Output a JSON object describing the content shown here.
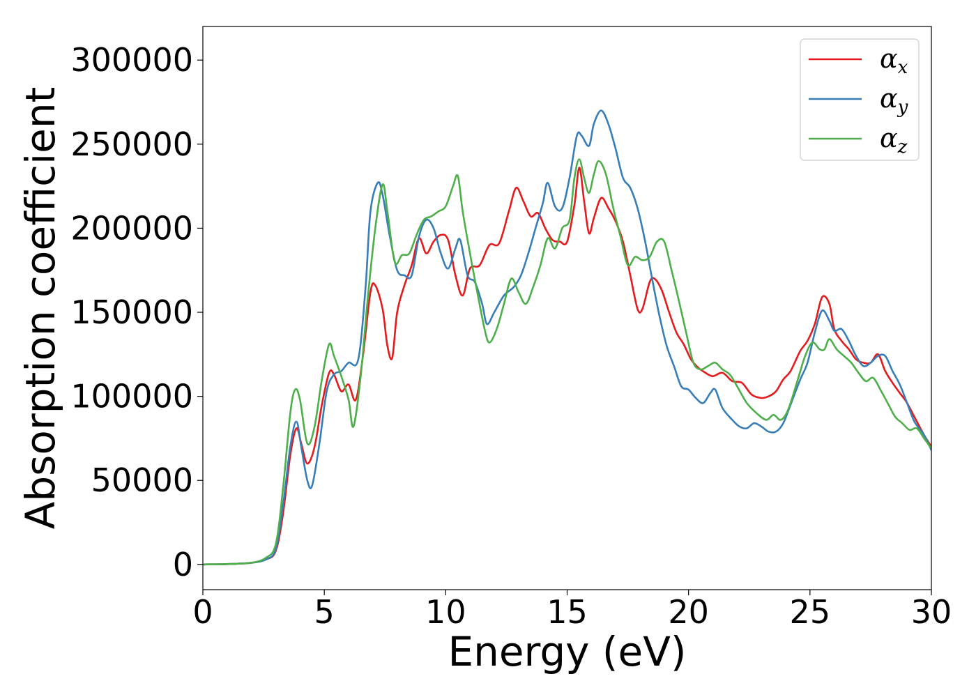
{
  "chart_data": {
    "type": "line",
    "title": "",
    "xlabel": "Energy (eV)",
    "ylabel": "Absorption coefficient",
    "xlim": [
      0,
      30
    ],
    "ylim": [
      -15000,
      320000
    ],
    "grid": false,
    "legend_placement": "top-right",
    "x_ticks": [
      "0",
      "5",
      "10",
      "15",
      "20",
      "25",
      "30"
    ],
    "y_ticks": [
      "0",
      "50000",
      "100000",
      "150000",
      "200000",
      "250000",
      "300000"
    ],
    "series": [
      {
        "name": "αx",
        "legend": {
          "base": "α",
          "sub": "x"
        },
        "color": "#e41a1c",
        "points": [
          [
            0,
            0
          ],
          [
            1,
            200
          ],
          [
            2,
            1000
          ],
          [
            2.6,
            3000
          ],
          [
            3.0,
            8000
          ],
          [
            3.3,
            30000
          ],
          [
            3.6,
            65000
          ],
          [
            3.85,
            81000
          ],
          [
            4.05,
            72000
          ],
          [
            4.3,
            60000
          ],
          [
            4.6,
            70000
          ],
          [
            4.9,
            95000
          ],
          [
            5.2,
            114000
          ],
          [
            5.4,
            113000
          ],
          [
            5.7,
            103000
          ],
          [
            6.0,
            107000
          ],
          [
            6.3,
            98000
          ],
          [
            6.6,
            125000
          ],
          [
            6.9,
            162000
          ],
          [
            7.1,
            166000
          ],
          [
            7.4,
            152000
          ],
          [
            7.6,
            130000
          ],
          [
            7.8,
            123000
          ],
          [
            8.0,
            150000
          ],
          [
            8.3,
            166000
          ],
          [
            8.6,
            178000
          ],
          [
            8.9,
            194000
          ],
          [
            9.2,
            185000
          ],
          [
            9.5,
            192000
          ],
          [
            9.8,
            196000
          ],
          [
            10.1,
            193000
          ],
          [
            10.4,
            172000
          ],
          [
            10.7,
            160000
          ],
          [
            11.0,
            176000
          ],
          [
            11.4,
            178000
          ],
          [
            11.8,
            190000
          ],
          [
            12.2,
            191000
          ],
          [
            12.6,
            210000
          ],
          [
            12.9,
            224000
          ],
          [
            13.2,
            216000
          ],
          [
            13.5,
            207000
          ],
          [
            13.8,
            209000
          ],
          [
            14.1,
            200000
          ],
          [
            14.4,
            193000
          ],
          [
            14.7,
            192000
          ],
          [
            15.0,
            192000
          ],
          [
            15.3,
            214000
          ],
          [
            15.5,
            236000
          ],
          [
            15.7,
            216000
          ],
          [
            15.9,
            197000
          ],
          [
            16.1,
            206000
          ],
          [
            16.4,
            218000
          ],
          [
            16.7,
            212000
          ],
          [
            17.0,
            204000
          ],
          [
            17.3,
            192000
          ],
          [
            17.6,
            172000
          ],
          [
            17.9,
            152000
          ],
          [
            18.1,
            152000
          ],
          [
            18.4,
            168000
          ],
          [
            18.6,
            170000
          ],
          [
            18.9,
            163000
          ],
          [
            19.2,
            150000
          ],
          [
            19.5,
            138000
          ],
          [
            19.8,
            131000
          ],
          [
            20.1,
            122000
          ],
          [
            20.4,
            117000
          ],
          [
            20.7,
            114000
          ],
          [
            21.0,
            112000
          ],
          [
            21.4,
            114000
          ],
          [
            21.8,
            109000
          ],
          [
            22.2,
            108000
          ],
          [
            22.6,
            101000
          ],
          [
            23.0,
            99000
          ],
          [
            23.3,
            100000
          ],
          [
            23.6,
            103000
          ],
          [
            23.9,
            110000
          ],
          [
            24.2,
            115000
          ],
          [
            24.6,
            127000
          ],
          [
            24.9,
            133000
          ],
          [
            25.2,
            143000
          ],
          [
            25.5,
            159000
          ],
          [
            25.8,
            155000
          ],
          [
            26.0,
            140000
          ],
          [
            26.3,
            133000
          ],
          [
            26.6,
            128000
          ],
          [
            26.9,
            122000
          ],
          [
            27.2,
            120000
          ],
          [
            27.5,
            120000
          ],
          [
            27.8,
            125000
          ],
          [
            28.1,
            115000
          ],
          [
            28.4,
            108000
          ],
          [
            28.7,
            102000
          ],
          [
            29.0,
            96000
          ],
          [
            29.4,
            85000
          ],
          [
            29.7,
            77000
          ],
          [
            30.0,
            70000
          ]
        ]
      },
      {
        "name": "αy",
        "legend": {
          "base": "α",
          "sub": "y"
        },
        "color": "#377eb8",
        "points": [
          [
            0,
            0
          ],
          [
            1,
            200
          ],
          [
            2,
            1000
          ],
          [
            2.6,
            3000
          ],
          [
            3.0,
            9000
          ],
          [
            3.3,
            35000
          ],
          [
            3.6,
            70000
          ],
          [
            3.85,
            85000
          ],
          [
            4.05,
            70000
          ],
          [
            4.3,
            50000
          ],
          [
            4.5,
            47000
          ],
          [
            4.8,
            72000
          ],
          [
            5.1,
            103000
          ],
          [
            5.4,
            113000
          ],
          [
            5.7,
            115000
          ],
          [
            6.0,
            120000
          ],
          [
            6.4,
            122000
          ],
          [
            6.7,
            165000
          ],
          [
            6.9,
            210000
          ],
          [
            7.2,
            227000
          ],
          [
            7.4,
            220000
          ],
          [
            7.7,
            195000
          ],
          [
            8.0,
            175000
          ],
          [
            8.3,
            172000
          ],
          [
            8.6,
            172000
          ],
          [
            8.9,
            195000
          ],
          [
            9.2,
            205000
          ],
          [
            9.5,
            200000
          ],
          [
            9.8,
            185000
          ],
          [
            10.1,
            176000
          ],
          [
            10.4,
            188000
          ],
          [
            10.6,
            193000
          ],
          [
            10.9,
            172000
          ],
          [
            11.2,
            168000
          ],
          [
            11.5,
            155000
          ],
          [
            11.7,
            143000
          ],
          [
            12.0,
            150000
          ],
          [
            12.4,
            160000
          ],
          [
            12.8,
            165000
          ],
          [
            13.1,
            172000
          ],
          [
            13.4,
            185000
          ],
          [
            13.7,
            200000
          ],
          [
            14.0,
            215000
          ],
          [
            14.2,
            227000
          ],
          [
            14.5,
            213000
          ],
          [
            14.8,
            212000
          ],
          [
            15.1,
            230000
          ],
          [
            15.4,
            255000
          ],
          [
            15.6,
            255000
          ],
          [
            15.9,
            249000
          ],
          [
            16.1,
            262000
          ],
          [
            16.4,
            270000
          ],
          [
            16.7,
            262000
          ],
          [
            17.0,
            247000
          ],
          [
            17.3,
            230000
          ],
          [
            17.6,
            224000
          ],
          [
            17.9,
            212000
          ],
          [
            18.2,
            193000
          ],
          [
            18.5,
            170000
          ],
          [
            18.8,
            148000
          ],
          [
            19.1,
            130000
          ],
          [
            19.4,
            118000
          ],
          [
            19.7,
            106000
          ],
          [
            20.0,
            104000
          ],
          [
            20.3,
            99000
          ],
          [
            20.6,
            96000
          ],
          [
            20.9,
            102000
          ],
          [
            21.1,
            104000
          ],
          [
            21.4,
            93000
          ],
          [
            21.8,
            86000
          ],
          [
            22.1,
            82000
          ],
          [
            22.4,
            81000
          ],
          [
            22.7,
            84000
          ],
          [
            23.0,
            82000
          ],
          [
            23.3,
            79000
          ],
          [
            23.6,
            79000
          ],
          [
            23.9,
            84000
          ],
          [
            24.2,
            95000
          ],
          [
            24.6,
            110000
          ],
          [
            24.9,
            120000
          ],
          [
            25.2,
            138000
          ],
          [
            25.5,
            151000
          ],
          [
            25.8,
            145000
          ],
          [
            26.0,
            139000
          ],
          [
            26.3,
            140000
          ],
          [
            26.6,
            133000
          ],
          [
            26.9,
            124000
          ],
          [
            27.2,
            118000
          ],
          [
            27.5,
            120000
          ],
          [
            27.8,
            124000
          ],
          [
            28.1,
            124000
          ],
          [
            28.4,
            115000
          ],
          [
            28.7,
            107000
          ],
          [
            29.0,
            96000
          ],
          [
            29.3,
            85000
          ],
          [
            29.7,
            77000
          ],
          [
            30.0,
            68000
          ]
        ]
      },
      {
        "name": "αz",
        "legend": {
          "base": "α",
          "sub": "z"
        },
        "color": "#4daf4a",
        "points": [
          [
            0,
            0
          ],
          [
            1,
            200
          ],
          [
            2,
            1000
          ],
          [
            2.6,
            4000
          ],
          [
            3.0,
            12000
          ],
          [
            3.3,
            45000
          ],
          [
            3.6,
            90000
          ],
          [
            3.8,
            104000
          ],
          [
            4.0,
            98000
          ],
          [
            4.3,
            72000
          ],
          [
            4.6,
            82000
          ],
          [
            4.9,
            110000
          ],
          [
            5.2,
            131000
          ],
          [
            5.4,
            124000
          ],
          [
            5.7,
            112000
          ],
          [
            6.0,
            98000
          ],
          [
            6.2,
            82000
          ],
          [
            6.5,
            112000
          ],
          [
            6.8,
            160000
          ],
          [
            7.1,
            200000
          ],
          [
            7.4,
            226000
          ],
          [
            7.6,
            210000
          ],
          [
            7.9,
            180000
          ],
          [
            8.2,
            184000
          ],
          [
            8.5,
            185000
          ],
          [
            8.8,
            196000
          ],
          [
            9.1,
            205000
          ],
          [
            9.4,
            207000
          ],
          [
            9.7,
            210000
          ],
          [
            10.0,
            213000
          ],
          [
            10.3,
            225000
          ],
          [
            10.5,
            231000
          ],
          [
            10.7,
            210000
          ],
          [
            11.0,
            185000
          ],
          [
            11.3,
            162000
          ],
          [
            11.6,
            140000
          ],
          [
            11.8,
            132000
          ],
          [
            12.1,
            140000
          ],
          [
            12.4,
            155000
          ],
          [
            12.7,
            170000
          ],
          [
            13.0,
            162000
          ],
          [
            13.3,
            155000
          ],
          [
            13.6,
            165000
          ],
          [
            13.9,
            178000
          ],
          [
            14.2,
            194000
          ],
          [
            14.5,
            188000
          ],
          [
            14.8,
            200000
          ],
          [
            15.1,
            205000
          ],
          [
            15.3,
            230000
          ],
          [
            15.5,
            241000
          ],
          [
            15.7,
            230000
          ],
          [
            15.9,
            221000
          ],
          [
            16.1,
            232000
          ],
          [
            16.3,
            240000
          ],
          [
            16.6,
            232000
          ],
          [
            16.9,
            212000
          ],
          [
            17.2,
            195000
          ],
          [
            17.5,
            178000
          ],
          [
            17.8,
            183000
          ],
          [
            18.1,
            181000
          ],
          [
            18.4,
            183000
          ],
          [
            18.7,
            192000
          ],
          [
            19.0,
            192000
          ],
          [
            19.3,
            175000
          ],
          [
            19.6,
            157000
          ],
          [
            19.9,
            138000
          ],
          [
            20.2,
            120000
          ],
          [
            20.5,
            116000
          ],
          [
            20.8,
            118000
          ],
          [
            21.1,
            120000
          ],
          [
            21.4,
            116000
          ],
          [
            21.7,
            113000
          ],
          [
            22.0,
            106000
          ],
          [
            22.4,
            96000
          ],
          [
            22.8,
            90000
          ],
          [
            23.2,
            86000
          ],
          [
            23.5,
            89000
          ],
          [
            23.8,
            86000
          ],
          [
            24.1,
            92000
          ],
          [
            24.5,
            110000
          ],
          [
            24.8,
            124000
          ],
          [
            25.1,
            132000
          ],
          [
            25.4,
            128000
          ],
          [
            25.6,
            128000
          ],
          [
            25.8,
            134000
          ],
          [
            26.1,
            128000
          ],
          [
            26.4,
            124000
          ],
          [
            26.7,
            120000
          ],
          [
            27.0,
            114000
          ],
          [
            27.3,
            109000
          ],
          [
            27.6,
            111000
          ],
          [
            27.9,
            104000
          ],
          [
            28.2,
            96000
          ],
          [
            28.5,
            88000
          ],
          [
            28.8,
            84000
          ],
          [
            29.1,
            80000
          ],
          [
            29.4,
            81000
          ],
          [
            29.7,
            75000
          ],
          [
            30.0,
            69000
          ]
        ]
      }
    ]
  }
}
